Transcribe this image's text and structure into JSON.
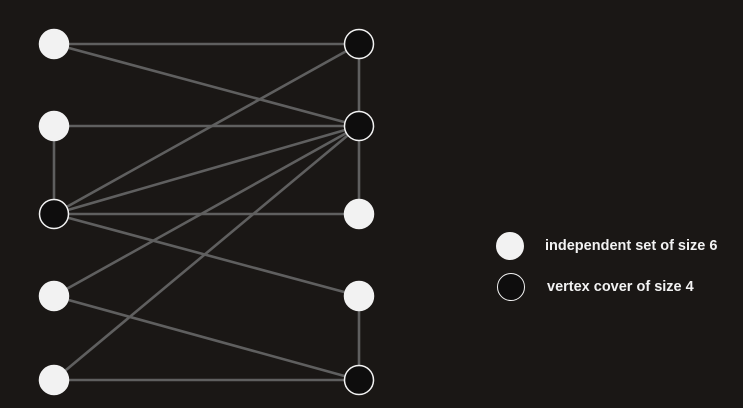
{
  "graph": {
    "nodes": [
      {
        "id": "L1",
        "type": "independent"
      },
      {
        "id": "L2",
        "type": "independent"
      },
      {
        "id": "L3",
        "type": "cover"
      },
      {
        "id": "L4",
        "type": "independent"
      },
      {
        "id": "L5",
        "type": "independent"
      },
      {
        "id": "R1",
        "type": "cover"
      },
      {
        "id": "R2",
        "type": "cover"
      },
      {
        "id": "R3",
        "type": "independent"
      },
      {
        "id": "R4",
        "type": "independent"
      },
      {
        "id": "R5",
        "type": "cover"
      }
    ],
    "edges": [
      [
        "L1",
        "R1"
      ],
      [
        "L1",
        "R2"
      ],
      [
        "L2",
        "R2"
      ],
      [
        "L2",
        "L3"
      ],
      [
        "L3",
        "R1"
      ],
      [
        "L3",
        "R2"
      ],
      [
        "L3",
        "R3"
      ],
      [
        "L3",
        "R4"
      ],
      [
        "L4",
        "R2"
      ],
      [
        "L4",
        "R5"
      ],
      [
        "L5",
        "R2"
      ],
      [
        "L5",
        "R5"
      ],
      [
        "R1",
        "R2"
      ],
      [
        "R2",
        "R3"
      ],
      [
        "R4",
        "R5"
      ]
    ]
  },
  "legend": {
    "independent_label": "independent set of size 6",
    "cover_label": "vertex cover of size 4"
  },
  "colors": {
    "background": "#1a1715",
    "edge": "#5f5f5f",
    "node_white": "#f2f2f2",
    "node_black": "#0e0d0d",
    "node_outline": "#f2f2f2"
  }
}
